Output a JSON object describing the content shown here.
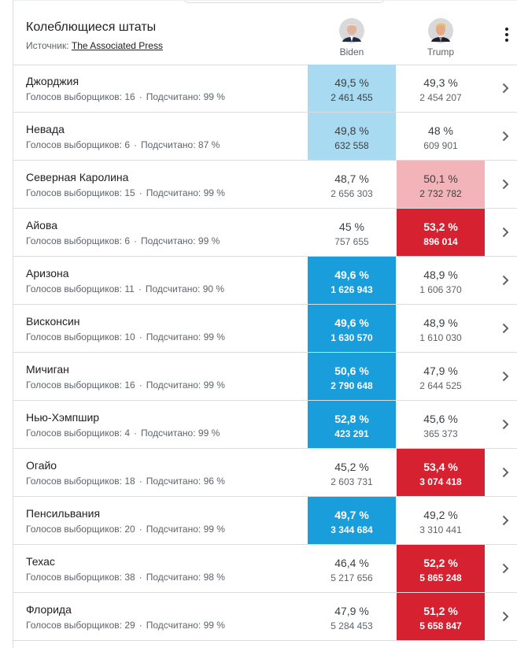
{
  "header": {
    "title": "Колеблющиеся штаты",
    "source_label": "Источник:",
    "source_link": "The Associated Press"
  },
  "candidates": [
    {
      "name": "Biden",
      "avatar_icon": "biden-portrait-icon"
    },
    {
      "name": "Trump",
      "avatar_icon": "trump-portrait-icon"
    }
  ],
  "colors": {
    "dem_light": "#a8daf1",
    "dem_strong": "#1a9edb",
    "rep_light": "#f2b4b8",
    "rep_strong": "#d52130",
    "divider": "#dadce0"
  },
  "labels": {
    "electors_prefix": "Голосов выборщиков:",
    "counted_prefix": "Подсчитано:"
  },
  "states": [
    {
      "name": "Джорджия",
      "electors": "16",
      "counted": "99 %",
      "biden": {
        "pct": "49,5 %",
        "votes": "2 461 455",
        "highlight": "light-blue"
      },
      "trump": {
        "pct": "49,3 %",
        "votes": "2 454 207",
        "highlight": "none"
      }
    },
    {
      "name": "Невада",
      "electors": "6",
      "counted": "87 %",
      "biden": {
        "pct": "49,8 %",
        "votes": "632 558",
        "highlight": "light-blue"
      },
      "trump": {
        "pct": "48 %",
        "votes": "609 901",
        "highlight": "none"
      }
    },
    {
      "name": "Северная Каролина",
      "electors": "15",
      "counted": "99 %",
      "biden": {
        "pct": "48,7 %",
        "votes": "2 656 303",
        "highlight": "none"
      },
      "trump": {
        "pct": "50,1 %",
        "votes": "2 732 782",
        "highlight": "light-red"
      }
    },
    {
      "name": "Айова",
      "electors": "6",
      "counted": "99 %",
      "biden": {
        "pct": "45 %",
        "votes": "757 655",
        "highlight": "none"
      },
      "trump": {
        "pct": "53,2 %",
        "votes": "896 014",
        "highlight": "strong-red"
      }
    },
    {
      "name": "Аризона",
      "electors": "11",
      "counted": "90 %",
      "biden": {
        "pct": "49,6 %",
        "votes": "1 626 943",
        "highlight": "strong-blue"
      },
      "trump": {
        "pct": "48,9 %",
        "votes": "1 606 370",
        "highlight": "none"
      }
    },
    {
      "name": "Висконсин",
      "electors": "10",
      "counted": "99 %",
      "biden": {
        "pct": "49,6 %",
        "votes": "1 630 570",
        "highlight": "strong-blue"
      },
      "trump": {
        "pct": "48,9 %",
        "votes": "1 610 030",
        "highlight": "none"
      }
    },
    {
      "name": "Мичиган",
      "electors": "16",
      "counted": "99 %",
      "biden": {
        "pct": "50,6 %",
        "votes": "2 790 648",
        "highlight": "strong-blue"
      },
      "trump": {
        "pct": "47,9 %",
        "votes": "2 644 525",
        "highlight": "none"
      }
    },
    {
      "name": "Нью-Хэмпшир",
      "electors": "4",
      "counted": "99 %",
      "biden": {
        "pct": "52,8 %",
        "votes": "423 291",
        "highlight": "strong-blue"
      },
      "trump": {
        "pct": "45,6 %",
        "votes": "365 373",
        "highlight": "none"
      }
    },
    {
      "name": "Огайо",
      "electors": "18",
      "counted": "96 %",
      "biden": {
        "pct": "45,2 %",
        "votes": "2 603 731",
        "highlight": "none"
      },
      "trump": {
        "pct": "53,4 %",
        "votes": "3 074 418",
        "highlight": "strong-red"
      }
    },
    {
      "name": "Пенсильвания",
      "electors": "20",
      "counted": "99 %",
      "biden": {
        "pct": "49,7 %",
        "votes": "3 344 684",
        "highlight": "strong-blue"
      },
      "trump": {
        "pct": "49,2 %",
        "votes": "3 310 441",
        "highlight": "none"
      }
    },
    {
      "name": "Техас",
      "electors": "38",
      "counted": "98 %",
      "biden": {
        "pct": "46,4 %",
        "votes": "5 217 656",
        "highlight": "none"
      },
      "trump": {
        "pct": "52,2 %",
        "votes": "5 865 248",
        "highlight": "strong-red"
      }
    },
    {
      "name": "Флорида",
      "electors": "29",
      "counted": "99 %",
      "biden": {
        "pct": "47,9 %",
        "votes": "5 284 453",
        "highlight": "none"
      },
      "trump": {
        "pct": "51,2 %",
        "votes": "5 658 847",
        "highlight": "strong-red"
      }
    }
  ]
}
